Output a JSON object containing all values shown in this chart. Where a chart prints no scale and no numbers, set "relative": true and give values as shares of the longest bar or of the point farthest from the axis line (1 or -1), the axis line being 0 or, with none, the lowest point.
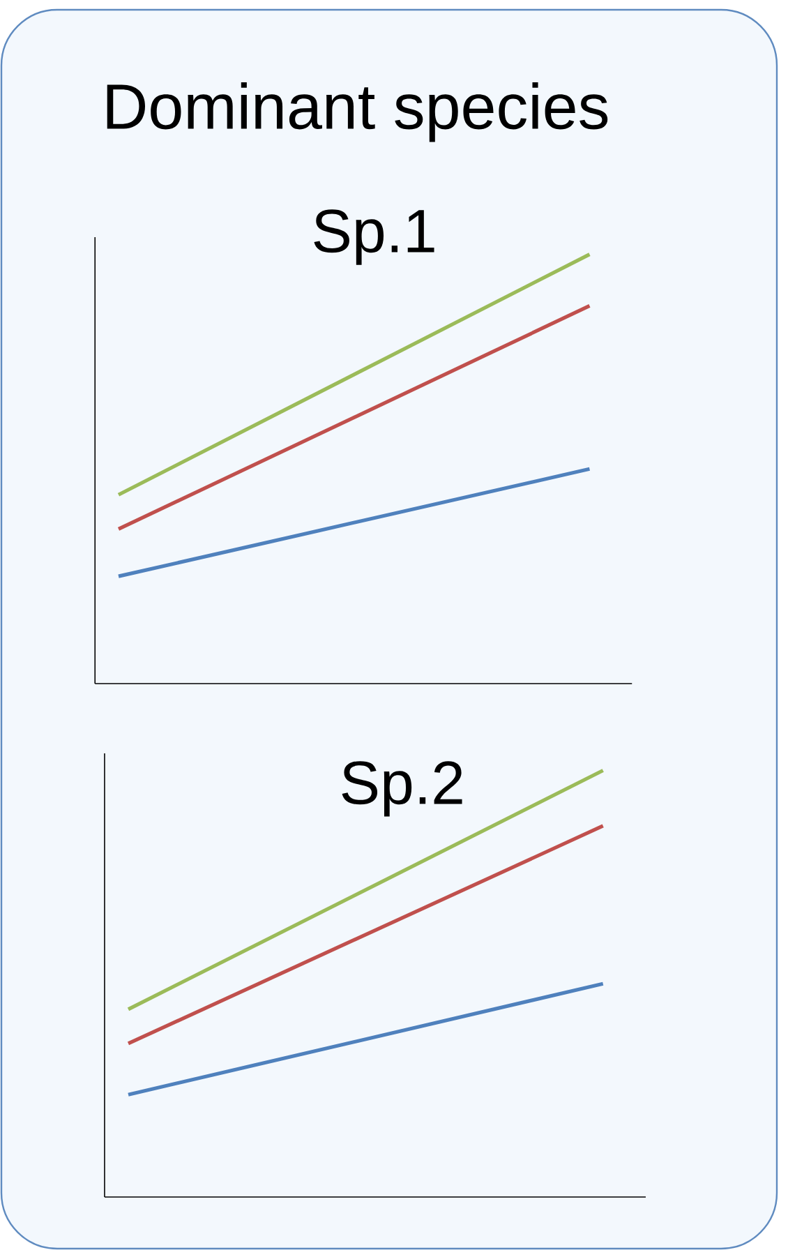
{
  "chart_data": [
    {
      "type": "line",
      "title": "Dominant species",
      "subtitle": "Sp.1",
      "relative": true,
      "categories": [
        null,
        null
      ],
      "series": [
        {
          "color": "#9bbb59",
          "values": [
            0.44,
            1.0
          ]
        },
        {
          "color": "#c0504d",
          "values": [
            0.36,
            0.88
          ]
        },
        {
          "color": "#4f81bd",
          "values": [
            0.25,
            0.5
          ]
        }
      ]
    },
    {
      "type": "line",
      "title": "Sp.2",
      "relative": true,
      "categories": [
        null,
        null
      ],
      "series": [
        {
          "color": "#9bbb59",
          "values": [
            0.44,
            1.0
          ]
        },
        {
          "color": "#c0504d",
          "values": [
            0.36,
            0.87
          ]
        },
        {
          "color": "#4f81bd",
          "values": [
            0.24,
            0.5
          ]
        }
      ]
    }
  ]
}
